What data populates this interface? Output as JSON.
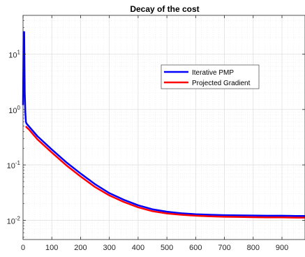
{
  "chart_data": {
    "type": "line",
    "title": "Decay of the cost",
    "xlabel": "",
    "ylabel": "",
    "xlim": [
      0,
      980
    ],
    "ylim": [
      0.0045,
      50
    ],
    "yscale": "log",
    "grid": true,
    "minor_grid": true,
    "legend_position": "upper-right",
    "x_ticks": [
      0,
      100,
      200,
      300,
      400,
      500,
      600,
      700,
      800,
      900
    ],
    "x_tick_labels": [
      "0",
      "100",
      "200",
      "300",
      "400",
      "500",
      "600",
      "700",
      "800",
      "900"
    ],
    "y_ticks": [
      0.01,
      0.1,
      1,
      10
    ],
    "y_tick_labels": [
      {
        "base": "10",
        "exp": "-2"
      },
      {
        "base": "10",
        "exp": "-1"
      },
      {
        "base": "10",
        "exp": "0"
      },
      {
        "base": "10",
        "exp": "1"
      }
    ],
    "series": [
      {
        "name": "Iterative PMP",
        "color": "#0000ff",
        "x": [
          0,
          2,
          4,
          6,
          8,
          10,
          12,
          20,
          50,
          100,
          150,
          200,
          250,
          300,
          350,
          400,
          450,
          500,
          550,
          600,
          650,
          700,
          750,
          800,
          850,
          900,
          950,
          980
        ],
        "y": [
          1.2,
          25,
          25,
          2,
          0.9,
          0.6,
          0.56,
          0.5,
          0.33,
          0.19,
          0.112,
          0.07,
          0.045,
          0.031,
          0.0235,
          0.0187,
          0.0158,
          0.0143,
          0.0134,
          0.0129,
          0.0126,
          0.0124,
          0.0123,
          0.0122,
          0.0121,
          0.0121,
          0.012,
          0.012
        ]
      },
      {
        "name": "Projected Gradient",
        "color": "#ff0000",
        "x": [
          10,
          12,
          20,
          50,
          100,
          150,
          200,
          250,
          300,
          350,
          400,
          450,
          500,
          550,
          600,
          650,
          700,
          750,
          800,
          850,
          900,
          950,
          980
        ],
        "y": [
          0.5,
          0.48,
          0.44,
          0.29,
          0.168,
          0.099,
          0.062,
          0.04,
          0.0282,
          0.0215,
          0.0172,
          0.0146,
          0.0133,
          0.0126,
          0.0121,
          0.0118,
          0.0116,
          0.0115,
          0.0114,
          0.0113,
          0.0113,
          0.0112,
          0.0112
        ]
      }
    ]
  }
}
